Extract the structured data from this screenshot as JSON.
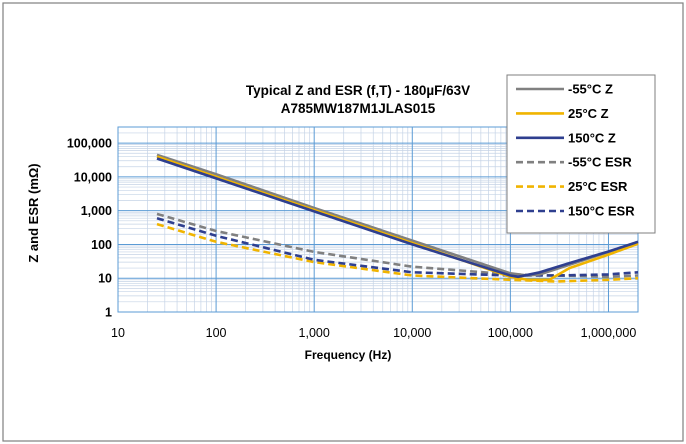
{
  "chart_data": {
    "type": "line",
    "title_line1": "Typical Z and ESR (f,T) - 180µF/63V",
    "title_line2": "A785MW187M1JLAS015",
    "xlabel": "Frequency (Hz)",
    "ylabel": "Z and ESR (mΩ)",
    "xscale": "log",
    "yscale": "log",
    "xlim": [
      10,
      2000000
    ],
    "ylim": [
      1,
      300000
    ],
    "x_ticks": [
      10,
      100,
      1000,
      10000,
      100000,
      1000000
    ],
    "x_tick_labels": [
      "10",
      "100",
      "1,000",
      "10,000",
      "100,000",
      "1,000,000"
    ],
    "y_ticks": [
      1,
      10,
      100,
      1000,
      10000,
      100000
    ],
    "y_tick_labels": [
      "1",
      "10",
      "100",
      "1,000",
      "10,000",
      "100,000"
    ],
    "grid": true,
    "legend_position": "top-right",
    "colors": {
      "gray": "#808080",
      "gold": "#f0b400",
      "navy": "#2f3f8f",
      "grid_major": "#5b9bd5",
      "grid_minor": "#c5d3e6"
    },
    "series": [
      {
        "name": "-55°C Z",
        "color": "#808080",
        "dash": false,
        "x": [
          25,
          100,
          1000,
          10000,
          100000,
          150000,
          200000,
          400000,
          1000000,
          2000000
        ],
        "y": [
          45000,
          12000,
          1200,
          130,
          14,
          12,
          13,
          25,
          60,
          120
        ]
      },
      {
        "name": "25°C Z",
        "color": "#f0b400",
        "dash": false,
        "x": [
          25,
          100,
          1000,
          10000,
          100000,
          150000,
          250000,
          400000,
          1000000,
          2000000
        ],
        "y": [
          40000,
          10000,
          1050,
          110,
          11,
          9,
          9,
          20,
          50,
          105
        ]
      },
      {
        "name": "150°C Z",
        "color": "#2f3f8f",
        "dash": false,
        "x": [
          25,
          100,
          1000,
          10000,
          100000,
          120000,
          200000,
          400000,
          1000000,
          2000000
        ],
        "y": [
          35000,
          9000,
          950,
          100,
          12,
          11,
          15,
          28,
          62,
          120
        ]
      },
      {
        "name": "-55°C ESR",
        "color": "#808080",
        "dash": true,
        "x": [
          25,
          100,
          1000,
          10000,
          100000,
          300000,
          1000000,
          2000000
        ],
        "y": [
          800,
          250,
          60,
          22,
          13,
          12,
          11,
          12
        ]
      },
      {
        "name": "25°C ESR",
        "color": "#f0b400",
        "dash": true,
        "x": [
          25,
          100,
          1000,
          10000,
          100000,
          300000,
          1000000,
          2000000
        ],
        "y": [
          400,
          120,
          30,
          12,
          9,
          8,
          9,
          10
        ]
      },
      {
        "name": "150°C ESR",
        "color": "#2f3f8f",
        "dash": true,
        "x": [
          25,
          100,
          1000,
          10000,
          100000,
          300000,
          1000000,
          2000000
        ],
        "y": [
          600,
          180,
          35,
          15,
          12,
          12,
          13,
          15
        ]
      }
    ]
  }
}
